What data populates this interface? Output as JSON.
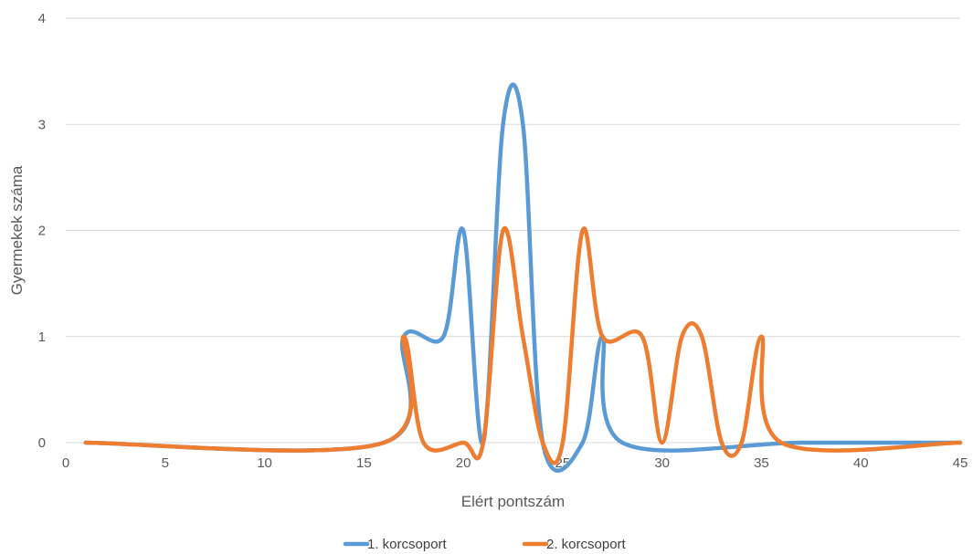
{
  "chart_data": {
    "type": "line",
    "title": "",
    "xlabel": "Elért pontszám",
    "ylabel": "Gyermekek száma",
    "xlim": [
      0,
      45
    ],
    "ylim": [
      0,
      4
    ],
    "xticks": [
      0,
      5,
      10,
      15,
      20,
      25,
      30,
      35,
      40,
      45
    ],
    "yticks": [
      0,
      1,
      2,
      3,
      4
    ],
    "grid": "horizontal",
    "smooth": true,
    "legend": "bottom",
    "series": [
      {
        "name": "1. korcsoport",
        "color": "#5B9BD5",
        "x": [
          1,
          16,
          17,
          19,
          20,
          21,
          22,
          23,
          24,
          26,
          27,
          28,
          37,
          45
        ],
        "y": [
          0,
          0,
          1,
          1,
          2,
          0,
          3,
          3,
          0,
          0,
          1,
          0,
          0,
          0
        ]
      },
      {
        "name": "2. korcsoport",
        "color": "#ED7D31",
        "x": [
          1,
          16,
          17,
          18,
          20,
          21,
          22,
          23,
          24,
          25,
          26,
          27,
          29,
          30,
          31,
          32,
          33,
          34,
          35,
          36,
          45
        ],
        "y": [
          0,
          0,
          1,
          0,
          0,
          0,
          2,
          1,
          0,
          0,
          2,
          1,
          1,
          0,
          1,
          1,
          0,
          0,
          1,
          0,
          0
        ]
      }
    ]
  }
}
